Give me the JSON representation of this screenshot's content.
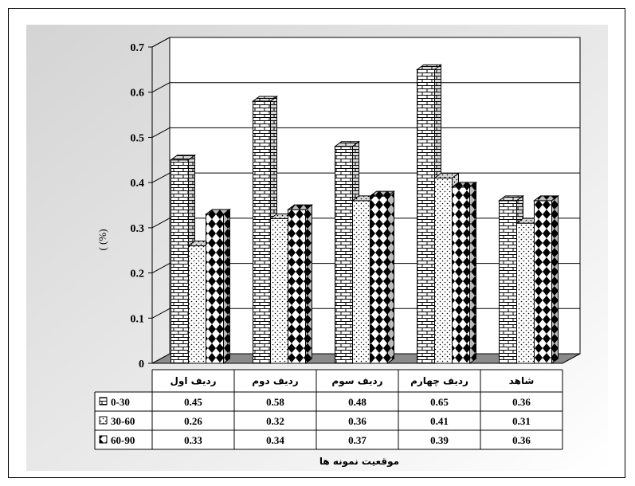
{
  "chart_data": {
    "type": "bar",
    "categories": [
      "ردیف اول",
      "ردیف دوم",
      "ردیف سوم",
      "ردیف چهارم",
      "شاهد"
    ],
    "series": [
      {
        "name": "0-30",
        "values": [
          0.45,
          0.58,
          0.48,
          0.65,
          0.36
        ],
        "pattern": "brick"
      },
      {
        "name": "30-60",
        "values": [
          0.26,
          0.32,
          0.36,
          0.41,
          0.31
        ],
        "pattern": "dots"
      },
      {
        "name": "60-90",
        "values": [
          0.33,
          0.34,
          0.37,
          0.39,
          0.36
        ],
        "pattern": "diamond"
      }
    ],
    "table_values": [
      [
        "0.45",
        "0.58",
        "0.48",
        "0.65",
        "0.36"
      ],
      [
        "0.26",
        "0.32",
        "0.36",
        "0.41",
        "0.31"
      ],
      [
        "0.33",
        "0.34",
        "0.37",
        "0.39",
        "0.36"
      ]
    ],
    "ytick_labels": [
      "0",
      "0.1",
      "0.2",
      "0.3",
      "0.4",
      "0.5",
      "0.6",
      "0.7"
    ],
    "ylim": [
      0,
      0.7
    ],
    "ylabel": "(     (%)",
    "xlabel": "موقعیت نمونه ها",
    "grid": true,
    "legend": "data-table"
  }
}
